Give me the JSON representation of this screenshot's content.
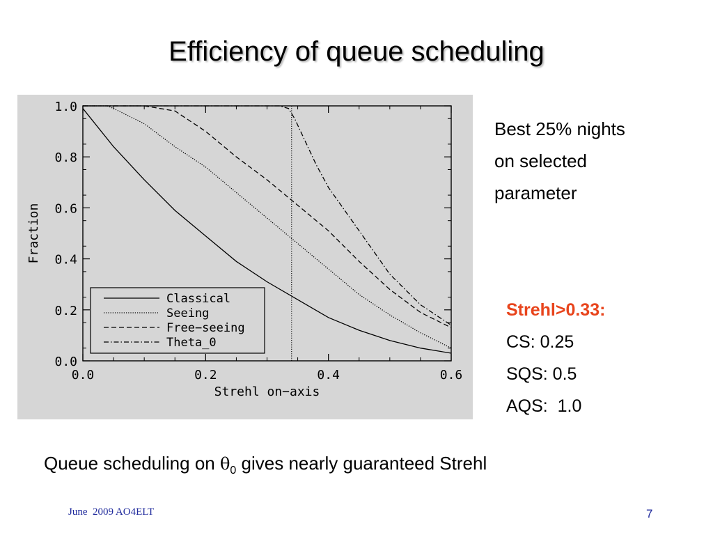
{
  "slide": {
    "title": "Efficiency of queue scheduling",
    "side_note_lines": [
      "Best 25% nights",
      "on selected",
      "parameter"
    ],
    "stats": {
      "title": "Strehl>0.33:",
      "lines": [
        "CS: 0.25",
        "SQS: 0.5",
        "AQS:  1.0"
      ]
    },
    "footnote": {
      "before": "Queue scheduling on ",
      "symbol": "θ",
      "subscript": "0",
      "after": " gives nearly guaranteed Strehl"
    },
    "footer_date": "June  2009 AO4ELT",
    "page_number": "7"
  },
  "colors": {
    "highlight": "#e8441c",
    "footer": "#1f2a9c",
    "panel": "#d6d6d6"
  },
  "chart_data": {
    "type": "line",
    "xlabel": "Strehl on−axis",
    "ylabel": "Fraction",
    "xlim": [
      0.0,
      0.6
    ],
    "ylim": [
      0.0,
      1.0
    ],
    "xticks": [
      "0.0",
      "0.2",
      "0.4",
      "0.6"
    ],
    "yticks": [
      "0.0",
      "0.2",
      "0.4",
      "0.6",
      "0.8",
      "1.0"
    ],
    "grid": false,
    "legend_position": "bottom-left",
    "vline_x": 0.34,
    "series": [
      {
        "name": "Classical",
        "dash": "solid",
        "x": [
          0.0,
          0.05,
          0.1,
          0.15,
          0.2,
          0.25,
          0.3,
          0.35,
          0.4,
          0.45,
          0.5,
          0.55,
          0.6
        ],
        "y": [
          0.99,
          0.84,
          0.71,
          0.59,
          0.49,
          0.39,
          0.31,
          0.24,
          0.17,
          0.12,
          0.08,
          0.05,
          0.03
        ]
      },
      {
        "name": "Seeing",
        "dash": "dotted",
        "x": [
          0.0,
          0.04,
          0.05,
          0.1,
          0.15,
          0.2,
          0.25,
          0.3,
          0.35,
          0.4,
          0.45,
          0.5,
          0.55,
          0.6
        ],
        "y": [
          1.0,
          1.0,
          0.99,
          0.93,
          0.84,
          0.76,
          0.66,
          0.56,
          0.46,
          0.36,
          0.26,
          0.18,
          0.11,
          0.05
        ]
      },
      {
        "name": "Free−seeing",
        "dash": "dashed",
        "x": [
          0.0,
          0.1,
          0.15,
          0.2,
          0.25,
          0.3,
          0.35,
          0.4,
          0.45,
          0.5,
          0.55,
          0.6
        ],
        "y": [
          1.0,
          1.0,
          0.98,
          0.9,
          0.8,
          0.71,
          0.61,
          0.51,
          0.39,
          0.28,
          0.19,
          0.13
        ]
      },
      {
        "name": "Theta_0",
        "dash": "dashdot",
        "x": [
          0.0,
          0.32,
          0.335,
          0.345,
          0.38,
          0.4,
          0.45,
          0.5,
          0.55,
          0.6
        ],
        "y": [
          1.0,
          1.0,
          0.99,
          0.95,
          0.77,
          0.68,
          0.51,
          0.34,
          0.22,
          0.14
        ]
      }
    ]
  }
}
